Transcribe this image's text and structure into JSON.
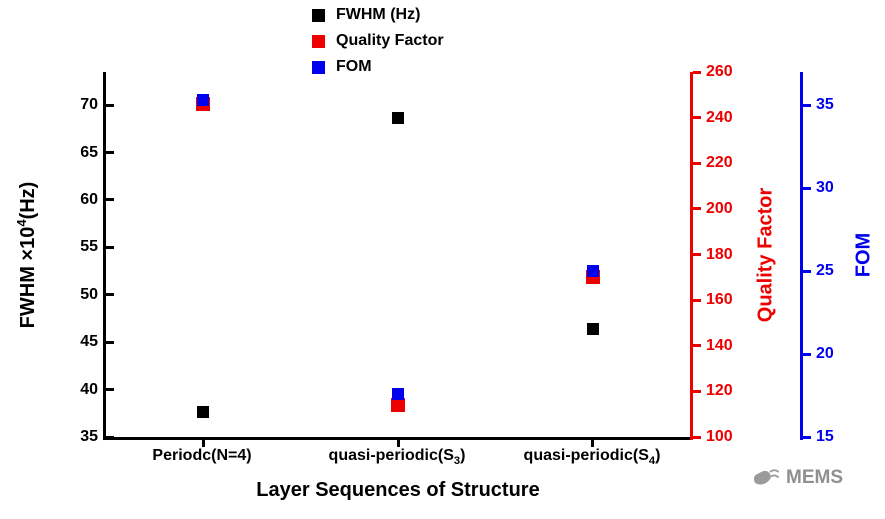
{
  "chart_data": {
    "type": "scatter",
    "x_axis": {
      "label": "Layer Sequences of Structure"
    },
    "categories": [
      "Periodc(N=4)",
      "quasi-periodic(S₃)",
      "quasi-periodic(S₄)"
    ],
    "categories_parts": [
      {
        "pre": "Periodc(N=4)",
        "sub": "",
        "post": ""
      },
      {
        "pre": "quasi-periodic(S",
        "sub": "3",
        "post": ")"
      },
      {
        "pre": "quasi-periodic(S",
        "sub": "4",
        "post": ")"
      }
    ],
    "series": [
      {
        "name": "FWHM (Hz)",
        "color": "#000000",
        "axis": "left",
        "values": [
          37.6,
          68.6,
          46.4
        ]
      },
      {
        "name": "Quality Factor",
        "color": "#ee0000",
        "axis": "qf",
        "values": [
          246,
          114,
          170
        ]
      },
      {
        "name": "FOM",
        "color": "#0000ee",
        "axis": "fom",
        "values": [
          35.3,
          17.6,
          25.0
        ]
      }
    ],
    "axes": {
      "left": {
        "label": "FWHM ×10⁴(Hz)",
        "label_parts": {
          "pre": "FWHM ×10",
          "sup": "4",
          "post": "(Hz)"
        },
        "color": "#000000",
        "ticks": [
          35,
          40,
          45,
          50,
          55,
          60,
          65,
          70
        ],
        "range": [
          35,
          73.5
        ]
      },
      "qf": {
        "label": "Quality Factor",
        "color": "#ee0000",
        "ticks": [
          100,
          120,
          140,
          160,
          180,
          200,
          220,
          240,
          260
        ],
        "range": [
          100,
          260
        ]
      },
      "fom": {
        "label": "FOM",
        "color": "#0000ee",
        "ticks": [
          15,
          20,
          25,
          30,
          35
        ],
        "range": [
          15,
          37
        ]
      }
    },
    "legend_position": "top"
  },
  "watermark": {
    "text": "MEMS"
  }
}
